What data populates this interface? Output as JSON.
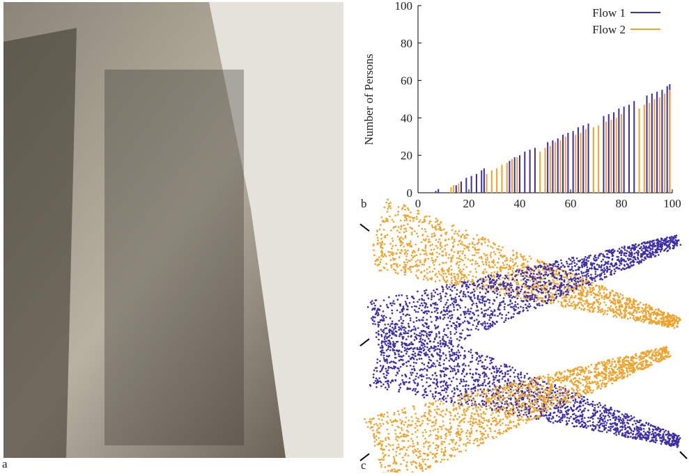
{
  "panel_labels": [
    "a",
    "b",
    "c"
  ],
  "chart_data": {
    "type": "bar",
    "ylabel": "Number of Persons",
    "xlim": [
      0,
      100
    ],
    "xticks": [
      0,
      20,
      40,
      60,
      80,
      100
    ],
    "ylim": [
      0,
      100
    ],
    "yticks": [
      0,
      20,
      40,
      60,
      80,
      100
    ],
    "legend": "top-right",
    "series": [
      {
        "name": "Flow 1",
        "color": "#3c2ea8",
        "x": [
          7,
          8,
          15,
          17,
          19,
          21,
          23,
          25,
          26,
          36,
          38,
          40,
          42,
          44,
          46,
          51,
          53,
          55,
          57,
          59,
          61,
          63,
          65,
          67,
          73,
          75,
          77,
          79,
          81,
          83,
          85,
          90,
          92,
          94,
          96,
          98,
          99
        ],
        "values": [
          1,
          2,
          4,
          6,
          8,
          9,
          10,
          12,
          13,
          17,
          19,
          20,
          22,
          23,
          24,
          27,
          28,
          29,
          31,
          32,
          33,
          35,
          36,
          37,
          41,
          42,
          43,
          45,
          46,
          47,
          49,
          52,
          53,
          54,
          55,
          57,
          58
        ]
      },
      {
        "name": "Flow 2",
        "color": "#f0a22a",
        "x": [
          13,
          14,
          16,
          27,
          29,
          31,
          33,
          35,
          37,
          39,
          48,
          50,
          52,
          54,
          56,
          58,
          62,
          64,
          66,
          69,
          71,
          74,
          76,
          78,
          80,
          87,
          89,
          91,
          93,
          95,
          97,
          99
        ],
        "values": [
          3,
          4,
          5,
          10,
          12,
          13,
          15,
          16,
          18,
          19,
          22,
          24,
          25,
          27,
          28,
          30,
          31,
          32,
          34,
          35,
          36,
          38,
          39,
          40,
          42,
          45,
          47,
          48,
          50,
          51,
          53,
          55
        ]
      }
    ]
  }
}
